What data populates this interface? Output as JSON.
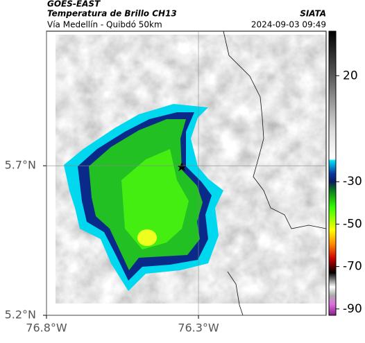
{
  "header": {
    "source": "GOES-EAST",
    "title": "Temperatura de Brillo CH13",
    "subtitle": "Vía Medellín - Quibdó 50km",
    "agency": "SIATA",
    "timestamp": "2024-09-03 09:49"
  },
  "map": {
    "lat_range": [
      5.2,
      6.15
    ],
    "lon_range": [
      -76.8,
      -75.88
    ],
    "lat_ticks": [
      {
        "value": 5.7,
        "label": "5.7°N"
      },
      {
        "value": 5.2,
        "label": "5.2°N"
      }
    ],
    "lon_ticks": [
      {
        "value": -76.8,
        "label": "76.8°W"
      },
      {
        "value": -76.3,
        "label": "76.3°W"
      }
    ],
    "grid": true
  },
  "colorbar": {
    "range": [
      -93,
      41
    ],
    "ticks": [
      20,
      -30,
      -50,
      -70,
      -90
    ]
  }
}
